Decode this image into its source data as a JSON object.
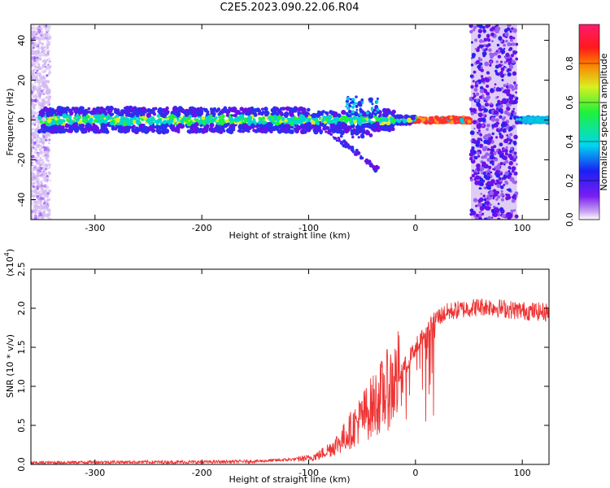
{
  "page_title": "C2E5.2023.090.22.06.R04",
  "chart_data": [
    {
      "type": "heatmap",
      "title": "C2E5.2023.090.22.06.R04",
      "xlabel": "Height of straight line (km)",
      "ylabel": "Frequency (Hz)",
      "xlim": [
        -360,
        125
      ],
      "ylim": [
        -50,
        48
      ],
      "xticks": [
        -300,
        -200,
        -100,
        0,
        100
      ],
      "xtick_labels": [
        "-300",
        "-200",
        "-100",
        "0",
        "100"
      ],
      "yticks": [
        -40,
        -20,
        0,
        20,
        40
      ],
      "ytick_labels": [
        "-40",
        "-20",
        "0",
        "20",
        "40"
      ],
      "colorbar": {
        "label": "Normalized spectral amplitude",
        "range": [
          0,
          1
        ],
        "ticks": [
          0.0,
          0.2,
          0.4,
          0.6,
          0.8
        ],
        "tick_labels": [
          "0.0",
          "0.2",
          "0.4",
          "0.6",
          "0.8"
        ],
        "colormap": "hsv-like (violet to blue to cyan to green to yellow to red to magenta)"
      },
      "features": {
        "main_band_freq_hz": 0,
        "band_x_range": [
          -352,
          125
        ],
        "diverging_branch_end": [
          -35,
          -25
        ],
        "noisy_columns_x": [
          [
            52,
            95
          ]
        ]
      }
    },
    {
      "type": "line",
      "xlabel": "Height of straight line (km)",
      "ylabel": "SNR (10 * v/v)",
      "multiplier_label": "(x10",
      "multiplier_exp": "4",
      "multiplier_close": ")",
      "xlim": [
        -360,
        125
      ],
      "ylim": [
        0,
        2.5
      ],
      "xticks": [
        -300,
        -200,
        -100,
        0,
        100
      ],
      "xtick_labels": [
        "-300",
        "-200",
        "-100",
        "0",
        "100"
      ],
      "yticks": [
        0.0,
        0.5,
        1.0,
        1.5,
        2.0,
        2.5
      ],
      "ytick_labels": [
        "0.0",
        "0.5",
        "1.0",
        "1.5",
        "2.0",
        "2.5"
      ],
      "color": "#ee3333",
      "series": [
        {
          "x": [
            -360,
            -300,
            -200,
            -150,
            -120,
            -100,
            -90,
            -80,
            -70,
            -60,
            -50,
            -40,
            -30,
            -20,
            -10,
            0,
            10,
            20,
            30,
            40,
            50,
            60,
            70,
            80,
            90,
            100,
            110,
            125
          ],
          "values": [
            0.02,
            0.03,
            0.03,
            0.04,
            0.06,
            0.08,
            0.12,
            0.2,
            0.3,
            0.45,
            0.6,
            0.75,
            0.9,
            1.05,
            1.25,
            1.5,
            1.7,
            1.88,
            1.95,
            1.98,
            2.0,
            2.02,
            2.02,
            2.0,
            1.98,
            1.97,
            1.96,
            1.95
          ]
        }
      ]
    }
  ]
}
